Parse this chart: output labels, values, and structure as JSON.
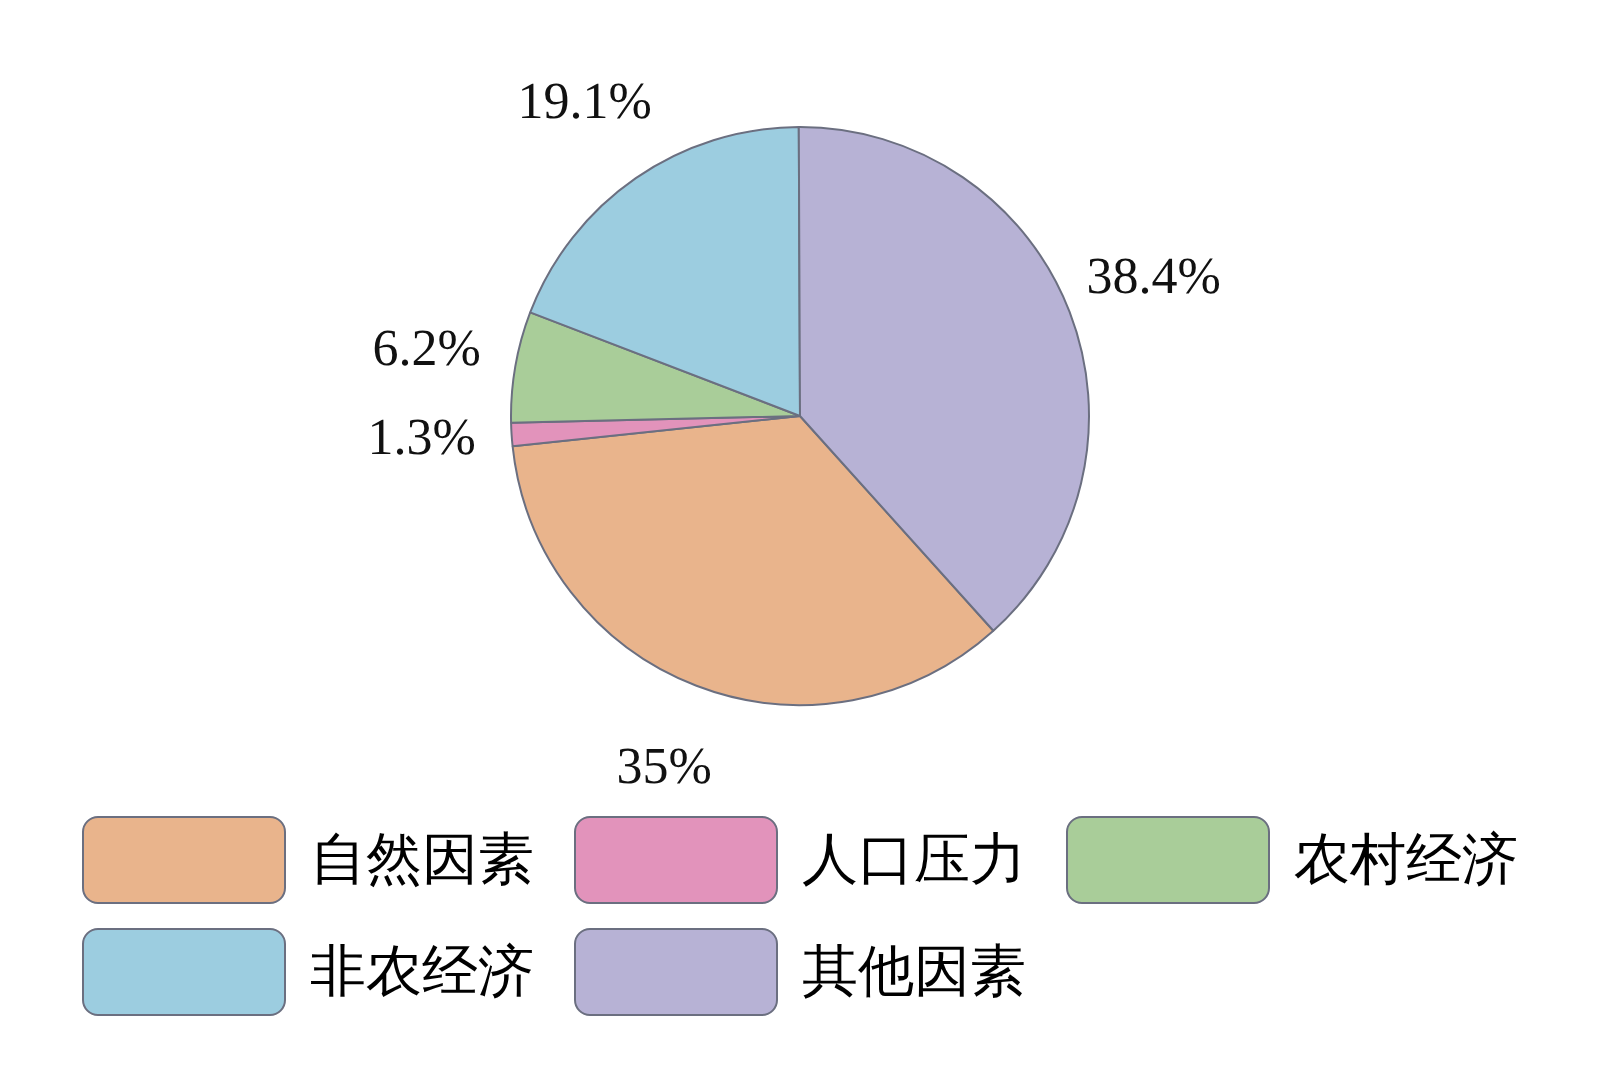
{
  "chart_data": {
    "type": "pie",
    "categories": [
      "自然因素",
      "人口压力",
      "农村经济",
      "非农经济",
      "其他因素"
    ],
    "values": [
      35,
      1.3,
      6.2,
      19.1,
      38.4
    ],
    "colors": [
      "#e9b48c",
      "#e293bb",
      "#a9cd99",
      "#9ccde0",
      "#b7b2d5"
    ],
    "value_labels": [
      "35%",
      "1.3%",
      "6.2%",
      "19.1%",
      "38.4%"
    ],
    "legend": "bottom"
  }
}
